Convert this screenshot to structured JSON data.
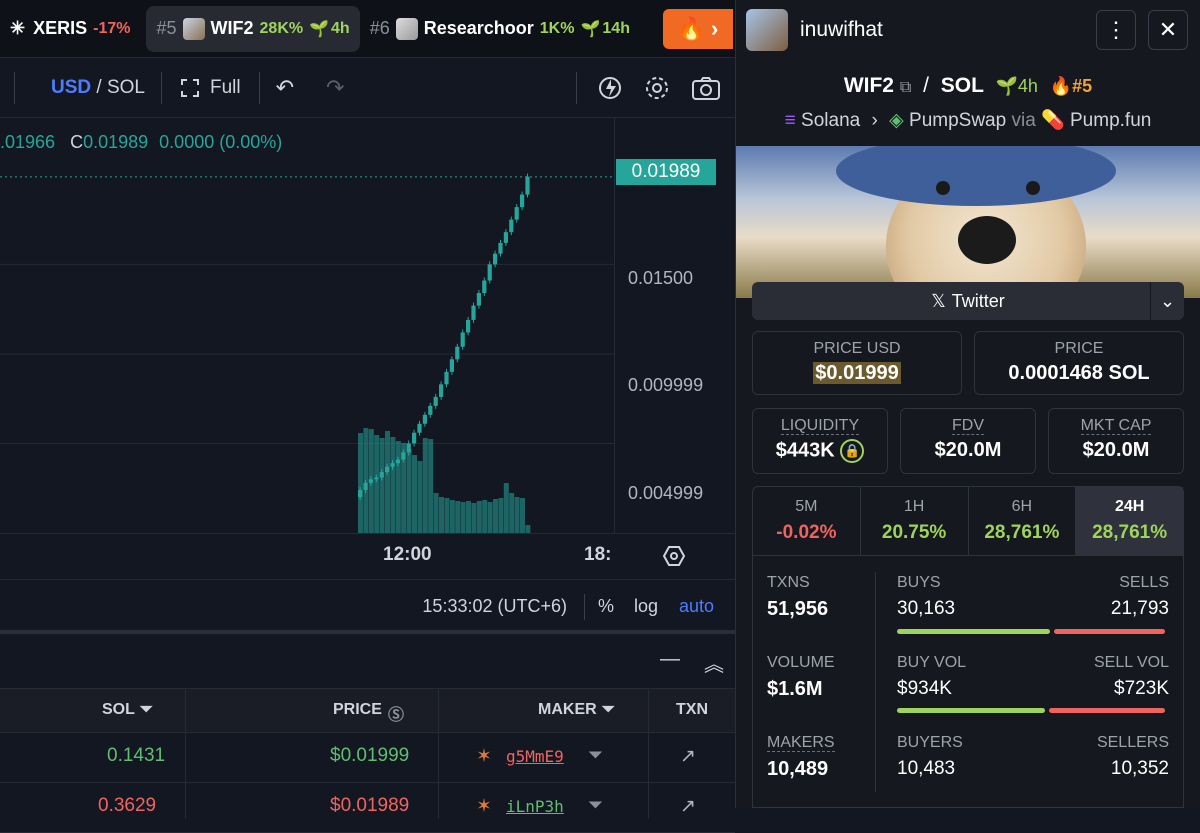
{
  "tabs": [
    {
      "rank": "",
      "name": "XERIS",
      "change": "-17%",
      "age": ""
    },
    {
      "rank": "#5",
      "name": "WIF2",
      "change": "28K%",
      "age": "4h"
    },
    {
      "rank": "#6",
      "name": "Researchoor",
      "change": "1K%",
      "age": "14h"
    }
  ],
  "toolbar": {
    "usd": "USD",
    "sol": "SOL",
    "full": "Full"
  },
  "chart": {
    "ohlc_partial": ".01966",
    "close_label": "C",
    "close_value": "0.01989",
    "change": "0.0000 (0.00%)",
    "last_price": "0.01989",
    "y_ticks": [
      "0.01500",
      "0.009999",
      "0.004999"
    ],
    "x_ticks": [
      "12:00",
      "18:"
    ],
    "clock": "15:33:02 (UTC+6)",
    "opt_pct": "%",
    "opt_log": "log",
    "opt_auto": "auto"
  },
  "chart_data": {
    "type": "bar",
    "title": "",
    "ylabel": "",
    "xlabel": "",
    "ylim": [
      0,
      0.0215
    ],
    "last_close": 0.01989,
    "candles": [
      [
        0.002,
        0.0024
      ],
      [
        0.0024,
        0.0028
      ],
      [
        0.0028,
        0.003
      ],
      [
        0.003,
        0.0031
      ],
      [
        0.0031,
        0.0034
      ],
      [
        0.0034,
        0.0037
      ],
      [
        0.0037,
        0.0039
      ],
      [
        0.0039,
        0.0041
      ],
      [
        0.0041,
        0.0045
      ],
      [
        0.0045,
        0.005
      ],
      [
        0.005,
        0.0056
      ],
      [
        0.0056,
        0.0061
      ],
      [
        0.0061,
        0.0066
      ],
      [
        0.0066,
        0.0071
      ],
      [
        0.0071,
        0.0076
      ],
      [
        0.0076,
        0.0083
      ],
      [
        0.0083,
        0.009
      ],
      [
        0.009,
        0.0097
      ],
      [
        0.0097,
        0.0104
      ],
      [
        0.0104,
        0.0112
      ],
      [
        0.0112,
        0.0119
      ],
      [
        0.0119,
        0.0127
      ],
      [
        0.0127,
        0.0134
      ],
      [
        0.0134,
        0.0141
      ],
      [
        0.0141,
        0.015
      ],
      [
        0.015,
        0.0156
      ],
      [
        0.0156,
        0.0162
      ],
      [
        0.0162,
        0.0168
      ],
      [
        0.0168,
        0.0175
      ],
      [
        0.0175,
        0.0182
      ],
      [
        0.0182,
        0.0189
      ],
      [
        0.0189,
        0.0199
      ]
    ],
    "volume": [
      100,
      105,
      104,
      98,
      95,
      102,
      96,
      92,
      90,
      84,
      78,
      72,
      95,
      94,
      40,
      36,
      35,
      33,
      32,
      31,
      32,
      30,
      32,
      33,
      31,
      34,
      35,
      50,
      40,
      36,
      35,
      8
    ]
  },
  "trades": {
    "headers": {
      "sol": "SOL",
      "price": "PRICE",
      "maker": "MAKER",
      "txn": "TXN"
    },
    "rows": [
      {
        "sol": "0.1431",
        "price": "$0.01999",
        "maker": "g5MmE9",
        "side": "buy"
      },
      {
        "sol": "0.3629",
        "price": "$0.01989",
        "maker": "iLnP3h",
        "side": "sell"
      }
    ]
  },
  "panel": {
    "name": "inuwifhat",
    "base": "WIF2",
    "quote": "SOL",
    "age": "4h",
    "rank": "#5",
    "chain": "Solana",
    "dex": "PumpSwap",
    "via": "via",
    "launchpad": "Pump.fun",
    "twitter": "Twitter",
    "price_usd_label": "PRICE USD",
    "price_usd": "$0.01999",
    "price_label": "PRICE",
    "price_sol": "0.0001468 SOL",
    "liquidity_label": "LIQUIDITY",
    "liquidity": "$443K",
    "fdv_label": "FDV",
    "fdv": "$20.0M",
    "mktcap_label": "MKT CAP",
    "mktcap": "$20.0M",
    "timeframes": [
      {
        "label": "5M",
        "value": "-0.02%",
        "dir": "down"
      },
      {
        "label": "1H",
        "value": "20.75%",
        "dir": "up"
      },
      {
        "label": "6H",
        "value": "28,761%",
        "dir": "up"
      },
      {
        "label": "24H",
        "value": "28,761%",
        "dir": "up"
      }
    ],
    "stats": {
      "txns_label": "TXNS",
      "txns": "51,956",
      "buys_label": "BUYS",
      "buys": "30,163",
      "sells_label": "SELLS",
      "sells": "21,793",
      "volume_label": "VOLUME",
      "volume": "$1.6M",
      "buyvol_label": "BUY VOL",
      "buyvol": "$934K",
      "sellvol_label": "SELL VOL",
      "sellvol": "$723K",
      "makers_label": "MAKERS",
      "makers": "10,489",
      "buyers_label": "BUYERS",
      "buyers": "10,483",
      "sellers_label": "SELLERS",
      "sellers": "10,352"
    },
    "ratios": {
      "buys": 0.58,
      "buyvol": 0.56
    }
  },
  "colors": {
    "up": "#26a69a",
    "accent": "#4f7cff",
    "buy": "#9fd45c",
    "sell": "#f0645f",
    "fire": "#f16a24"
  }
}
